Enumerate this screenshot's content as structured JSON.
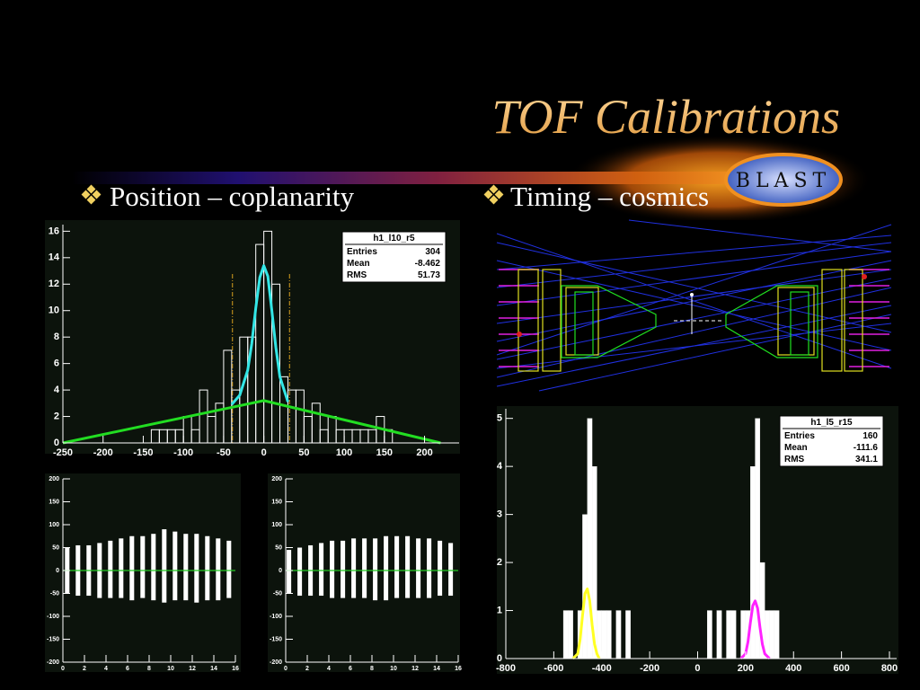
{
  "title": "TOF Calibrations",
  "logo": "BLAST",
  "bullets": [
    "Position – coplanarity",
    "Timing – cosmics"
  ],
  "chart_data": [
    {
      "type": "histogram",
      "color": "#ffffff",
      "filled": false,
      "bins": [
        -250,
        -240,
        -230,
        -220,
        -210,
        -200,
        -190,
        -180,
        -170,
        -160,
        -150,
        -140,
        -130,
        -120,
        -110,
        -100,
        -90,
        -80,
        -70,
        -60,
        -50,
        -40,
        -30,
        -20,
        -10,
        0,
        10,
        20,
        30,
        40,
        50,
        60,
        70,
        80,
        90,
        100,
        110,
        120,
        130,
        140,
        150,
        160,
        170,
        180,
        190,
        200,
        210,
        220,
        230,
        240
      ],
      "values": [
        0,
        0,
        0,
        0,
        0,
        0,
        0,
        0,
        0,
        0,
        0,
        1,
        1,
        1,
        1,
        2,
        1,
        4,
        2,
        3,
        7,
        4,
        8,
        8,
        15,
        16,
        12,
        5,
        4,
        4,
        2,
        3,
        1,
        2,
        1,
        1,
        1,
        1,
        1,
        2,
        1,
        0,
        0,
        0,
        0,
        0,
        0,
        0,
        0
      ],
      "xlim": [
        -250,
        243
      ],
      "ylim": [
        0,
        16.5
      ],
      "xticks": [
        -250,
        -200,
        -150,
        -100,
        -50,
        0,
        50,
        100,
        150,
        200
      ],
      "yticks": [
        0,
        2,
        4,
        6,
        8,
        10,
        12,
        14,
        16
      ],
      "fits": [
        {
          "color": "#33e6e6",
          "x": [
            -40,
            -30,
            -20,
            -15,
            -10,
            -5,
            0,
            5,
            10,
            15,
            20,
            30
          ],
          "values": [
            2.9,
            3.6,
            5.5,
            7.5,
            10.2,
            12.5,
            13.4,
            12.6,
            10,
            7.2,
            5,
            3.1
          ]
        },
        {
          "color": "#22dd22",
          "x": [
            -250,
            0,
            220
          ],
          "values": [
            0,
            3.2,
            0
          ]
        }
      ],
      "markers": [
        -39,
        32
      ],
      "marker_color": "#d9a020",
      "stats": {
        "name": "h1_l10_r5",
        "rows": [
          {
            "label": "Entries",
            "value": 304
          },
          {
            "label": "Mean",
            "value": -8.462
          },
          {
            "label": "RMS",
            "value": 51.73
          }
        ]
      }
    },
    {
      "type": "band",
      "color": "#ffffff",
      "x": [
        0.4,
        1.4,
        2.4,
        3.4,
        4.4,
        5.4,
        6.4,
        7.4,
        8.4,
        9.4,
        10.4,
        11.4,
        12.4,
        13.4,
        14.4,
        15.4
      ],
      "low": [
        -50,
        -55,
        -55,
        -60,
        -60,
        -60,
        -65,
        -60,
        -65,
        -70,
        -65,
        -65,
        -70,
        -65,
        -65,
        -60
      ],
      "high": [
        50,
        55,
        55,
        60,
        65,
        70,
        75,
        75,
        80,
        90,
        85,
        80,
        80,
        75,
        70,
        65
      ],
      "hline": 0,
      "hline_color": "#22cc22",
      "xlim": [
        0,
        16
      ],
      "ylim": [
        -200,
        200
      ],
      "xticks": [
        0,
        2,
        4,
        6,
        8,
        10,
        12,
        14,
        16
      ],
      "yticks": [
        -200,
        -150,
        -100,
        -50,
        0,
        50,
        100,
        150,
        200
      ]
    },
    {
      "type": "band",
      "color": "#ffffff",
      "x": [
        0.3,
        1.3,
        2.3,
        3.3,
        4.3,
        5.3,
        6.3,
        7.3,
        8.3,
        9.3,
        10.3,
        11.3,
        12.3,
        13.3,
        14.3,
        15.3
      ],
      "low": [
        -50,
        -55,
        -55,
        -55,
        -60,
        -60,
        -60,
        -60,
        -65,
        -65,
        -60,
        -60,
        -60,
        -60,
        -55,
        -55
      ],
      "high": [
        45,
        50,
        55,
        60,
        65,
        65,
        70,
        70,
        70,
        75,
        75,
        75,
        70,
        70,
        65,
        60
      ],
      "hline": 0,
      "hline_color": "#22cc22",
      "xlim": [
        0,
        16
      ],
      "ylim": [
        -200,
        200
      ],
      "xticks": [
        0,
        2,
        4,
        6,
        8,
        10,
        12,
        14,
        16
      ],
      "yticks": [
        -200,
        -150,
        -100,
        -50,
        0,
        50,
        100,
        150,
        200
      ]
    },
    {
      "type": "histogram",
      "color": "#ffffff",
      "filled": true,
      "bins": [
        -800,
        -780,
        -760,
        -740,
        -720,
        -700,
        -680,
        -660,
        -640,
        -620,
        -600,
        -580,
        -560,
        -540,
        -520,
        -500,
        -480,
        -460,
        -440,
        -420,
        -400,
        -380,
        -360,
        -340,
        -320,
        -300,
        -280,
        -260,
        -240,
        -220,
        -200,
        -180,
        -160,
        -140,
        -120,
        -100,
        -80,
        -60,
        -40,
        -20,
        0,
        20,
        40,
        60,
        80,
        100,
        120,
        140,
        160,
        180,
        200,
        220,
        240,
        260,
        280,
        300,
        320,
        340,
        360,
        380,
        400,
        420,
        440,
        460,
        480,
        500,
        520,
        540,
        560,
        580,
        600,
        620,
        640,
        660,
        680,
        700,
        720,
        740,
        760,
        780,
        800
      ],
      "values": [
        0,
        0,
        0,
        0,
        0,
        0,
        0,
        0,
        0,
        0,
        0,
        0,
        1,
        1,
        0,
        1,
        3,
        5,
        4,
        1,
        1,
        1,
        0,
        1,
        0,
        1,
        0,
        0,
        0,
        0,
        0,
        0,
        0,
        0,
        0,
        0,
        0,
        0,
        0,
        0,
        0,
        0,
        1,
        0,
        1,
        0,
        1,
        1,
        0,
        1,
        1,
        4,
        5,
        2,
        1,
        1,
        1,
        0,
        0,
        0,
        0,
        0,
        0,
        0,
        0,
        0,
        0,
        0,
        0,
        0,
        0,
        0,
        0,
        0,
        0,
        0,
        0,
        0,
        0,
        0
      ],
      "xlim": [
        -800,
        830
      ],
      "ylim": [
        0,
        5.2
      ],
      "xticks": [
        -800,
        -600,
        -400,
        -200,
        0,
        200,
        400,
        600,
        800
      ],
      "yticks": [
        0,
        1,
        2,
        3,
        4,
        5
      ],
      "fits": [
        {
          "color": "#ffff22",
          "x": [
            -520,
            -500,
            -490,
            -480,
            -470,
            -460,
            -450,
            -440,
            -430,
            -420,
            -410
          ],
          "values": [
            0,
            0.1,
            0.4,
            0.9,
            1.35,
            1.45,
            1.2,
            0.7,
            0.3,
            0.1,
            0
          ]
        },
        {
          "color": "#ff22ff",
          "x": [
            180,
            200,
            210,
            220,
            230,
            240,
            250,
            260,
            270,
            280,
            300
          ],
          "values": [
            0,
            0.1,
            0.35,
            0.75,
            1.1,
            1.2,
            1.05,
            0.65,
            0.3,
            0.1,
            0
          ]
        }
      ],
      "stats": {
        "name": "h1_l5_r15",
        "rows": [
          {
            "label": "Entries",
            "value": 160
          },
          {
            "label": "Mean",
            "value": -111.6
          },
          {
            "label": "RMS",
            "value": 341.1
          }
        ]
      }
    }
  ]
}
